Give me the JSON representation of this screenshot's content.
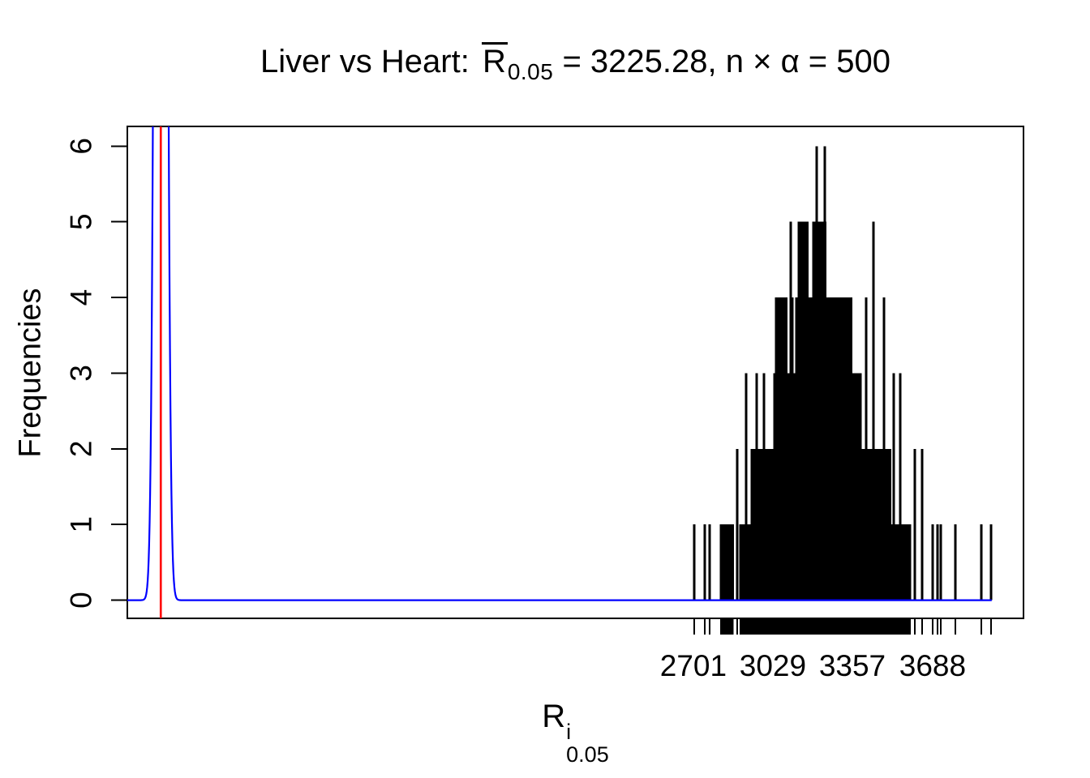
{
  "header": {
    "title_prefix": "Liver vs Heart: ",
    "title_r": "R",
    "title_r_sub": "0.05",
    "title_suffix": " = 3225.28,  n × α = 500"
  },
  "axes": {
    "y_label": "Frequencies",
    "x_label_base": "R",
    "x_label_sup": "i",
    "x_label_sub": "0.05"
  },
  "chart_data": {
    "type": "bar",
    "subtype": "spike-histogram (type='h') with density curve overlay and rug",
    "title": "Liver vs Heart: R̄_0.05 = 3225.28, n × α = 500",
    "xlabel": "R^i_0.05",
    "ylabel": "Frequencies",
    "background": "#FFFFFF",
    "frame_color": "#000000",
    "xlim": [
      366,
      4063
    ],
    "ylim": [
      -0.24,
      6.26
    ],
    "x_ticks": [
      2701,
      3029,
      3357,
      3688
    ],
    "y_ticks": [
      0,
      1,
      2,
      3,
      4,
      5,
      6
    ],
    "grid": false,
    "red_vline": {
      "x": 504,
      "color": "#FF0000"
    },
    "density_curve": {
      "comment": "narrow density peak clipped at plot top",
      "center": 504,
      "sd": 17,
      "peak_height": 40,
      "x_start": 366,
      "x_end": 3932,
      "color": "#0000FF"
    },
    "spikes_color": "#000000",
    "spike_singles": [
      [
        2704,
        1
      ],
      [
        2748,
        1
      ],
      [
        2768,
        1
      ],
      [
        2882,
        2
      ],
      [
        2918,
        3
      ],
      [
        2962,
        3
      ],
      [
        2992,
        3
      ],
      [
        3102,
        5
      ],
      [
        3109,
        4
      ],
      [
        3126,
        4
      ],
      [
        3210,
        6
      ],
      [
        3243,
        6
      ],
      [
        3414,
        4
      ],
      [
        3444,
        5
      ],
      [
        3487,
        4
      ],
      [
        3527,
        3
      ],
      [
        3554,
        3
      ],
      [
        3614,
        2
      ],
      [
        3645,
        2
      ],
      [
        3688,
        1
      ],
      [
        3708,
        1
      ],
      [
        3722,
        1
      ],
      [
        3782,
        1
      ],
      [
        3889,
        1
      ],
      [
        3929,
        1
      ]
    ],
    "spike_bands": [
      {
        "from": 2815,
        "to": 2865,
        "height": 1,
        "step": 6
      },
      {
        "from": 2895,
        "to": 3598,
        "height": 1,
        "step": 5
      },
      {
        "from": 2942,
        "to": 3514,
        "height": 2,
        "step": 5
      },
      {
        "from": 3036,
        "to": 3394,
        "height": 3,
        "step": 5
      },
      {
        "from": 3042,
        "to": 3086,
        "height": 4,
        "step": 6
      },
      {
        "from": 3136,
        "to": 3353,
        "height": 4,
        "step": 6
      },
      {
        "from": 3136,
        "to": 3172,
        "height": 5,
        "step": 7
      },
      {
        "from": 3196,
        "to": 3246,
        "height": 5,
        "step": 7
      }
    ],
    "rug": {
      "present": true,
      "at": "every spike x position",
      "side": "below x-axis"
    }
  }
}
